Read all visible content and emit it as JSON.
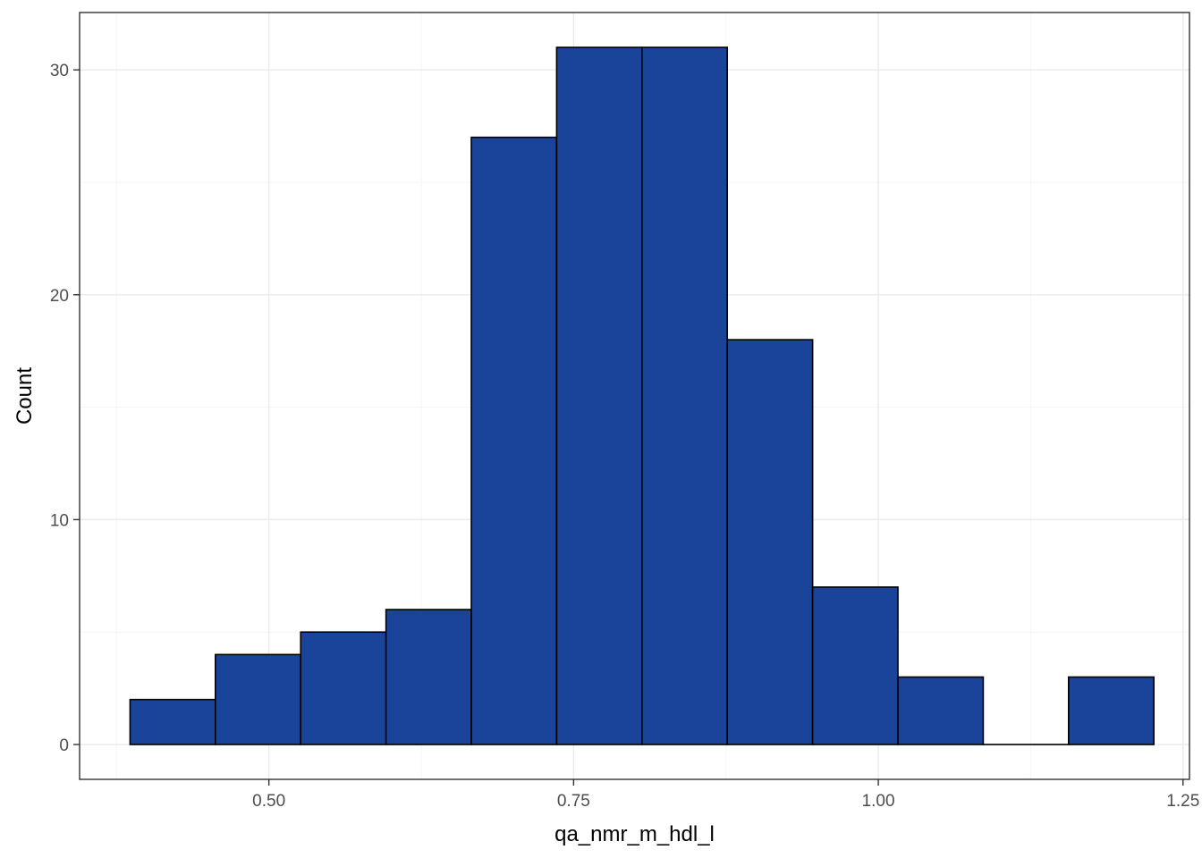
{
  "chart_data": {
    "type": "bar",
    "subtype": "histogram",
    "xlabel": "qa_nmr_m_hdl_l",
    "ylabel": "Count",
    "xlim": [
      0.3447,
      1.2553
    ],
    "ylim": [
      -1.55,
      32.55
    ],
    "x_ticks": [
      0.5,
      0.75,
      1.0,
      1.25
    ],
    "x_tick_labels": [
      "0.50",
      "0.75",
      "1.00",
      "1.25"
    ],
    "y_ticks": [
      0,
      10,
      20,
      30
    ],
    "y_tick_labels": [
      "0",
      "10",
      "20",
      "30"
    ],
    "bins": [
      {
        "x0": 0.3861,
        "x1": 0.4561,
        "count": 2
      },
      {
        "x0": 0.4561,
        "x1": 0.5261,
        "count": 4
      },
      {
        "x0": 0.5261,
        "x1": 0.5961,
        "count": 5
      },
      {
        "x0": 0.5961,
        "x1": 0.6661,
        "count": 6
      },
      {
        "x0": 0.6661,
        "x1": 0.7361,
        "count": 27
      },
      {
        "x0": 0.7361,
        "x1": 0.8061,
        "count": 31
      },
      {
        "x0": 0.8061,
        "x1": 0.8761,
        "count": 31
      },
      {
        "x0": 0.8761,
        "x1": 0.9461,
        "count": 18
      },
      {
        "x0": 0.9461,
        "x1": 1.0161,
        "count": 7
      },
      {
        "x0": 1.0161,
        "x1": 1.0861,
        "count": 3
      },
      {
        "x0": 1.0861,
        "x1": 1.1561,
        "count": 0
      },
      {
        "x0": 1.1561,
        "x1": 1.2261,
        "count": 3
      }
    ],
    "grid": true,
    "theme": "bw",
    "colors": {
      "bar_fill": "#1A4499",
      "bar_stroke": "#000000",
      "grid_major": "#EBEBEB",
      "grid_minor": "#F5F5F5",
      "panel_border": "#333333",
      "tick_text": "#4D4D4D",
      "title_text": "#000000"
    }
  }
}
